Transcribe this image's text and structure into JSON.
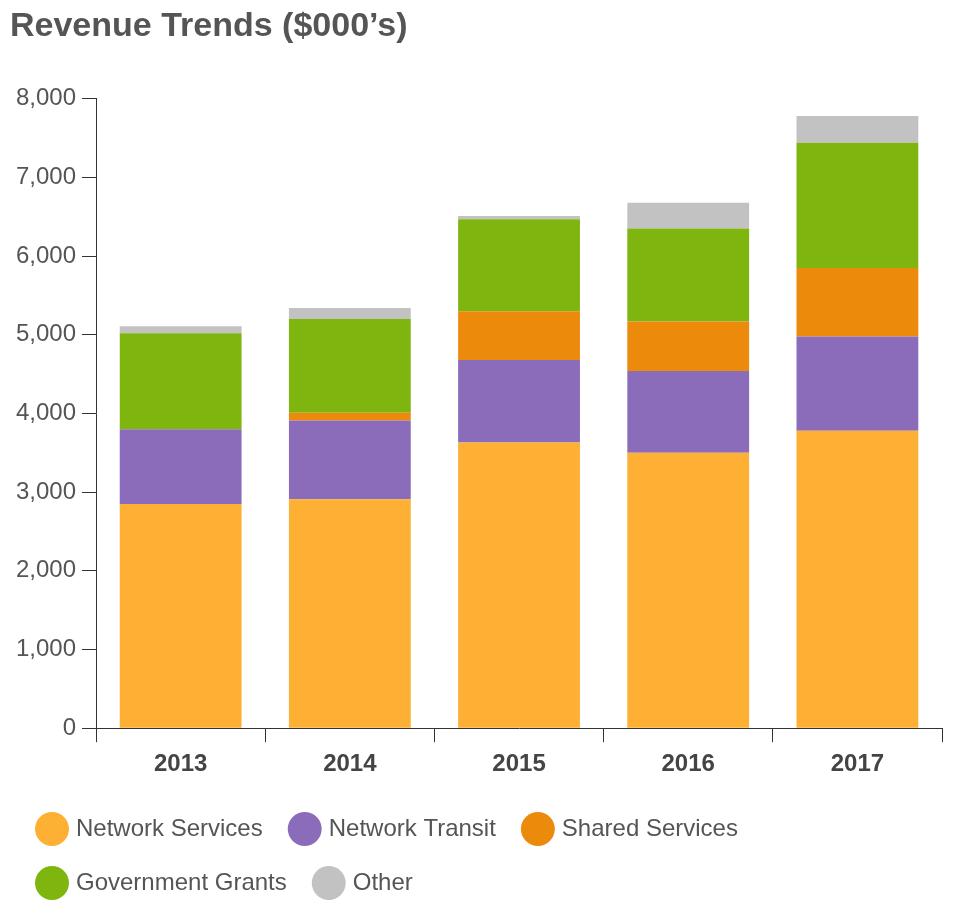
{
  "chart_data": {
    "type": "bar",
    "title": "Revenue Trends ($000’s)",
    "categories": [
      "2013",
      "2014",
      "2015",
      "2016",
      "2017"
    ],
    "series": [
      {
        "name": "Network Services",
        "color": "#fdb034",
        "values": [
          2850,
          2910,
          3630,
          3500,
          3780
        ]
      },
      {
        "name": "Network Transit",
        "color": "#8a6cbb",
        "values": [
          950,
          1000,
          1050,
          1040,
          1200
        ]
      },
      {
        "name": "Shared Services",
        "color": "#ec8a0c",
        "values": [
          0,
          100,
          620,
          630,
          870
        ]
      },
      {
        "name": "Government Grants",
        "color": "#7fb50f",
        "values": [
          1220,
          1190,
          1170,
          1180,
          1590
        ]
      },
      {
        "name": "Other",
        "color": "#c2c2c2",
        "values": [
          90,
          140,
          40,
          330,
          340
        ]
      }
    ],
    "stacked": true,
    "ylim": [
      0,
      8000
    ],
    "yticks": [
      0,
      {
        "value": 1000,
        "label": "1,000"
      },
      {
        "value": 2000,
        "label": "2,000"
      },
      {
        "value": 3000,
        "label": "3,000"
      },
      {
        "value": 4000,
        "label": "4,000"
      },
      {
        "value": 5000,
        "label": "5,000"
      },
      {
        "value": 6000,
        "label": "6,000"
      },
      {
        "value": 7000,
        "label": "7,000"
      },
      {
        "value": 8000,
        "label": "8,000"
      }
    ],
    "grid": false,
    "legend": "bottom"
  }
}
